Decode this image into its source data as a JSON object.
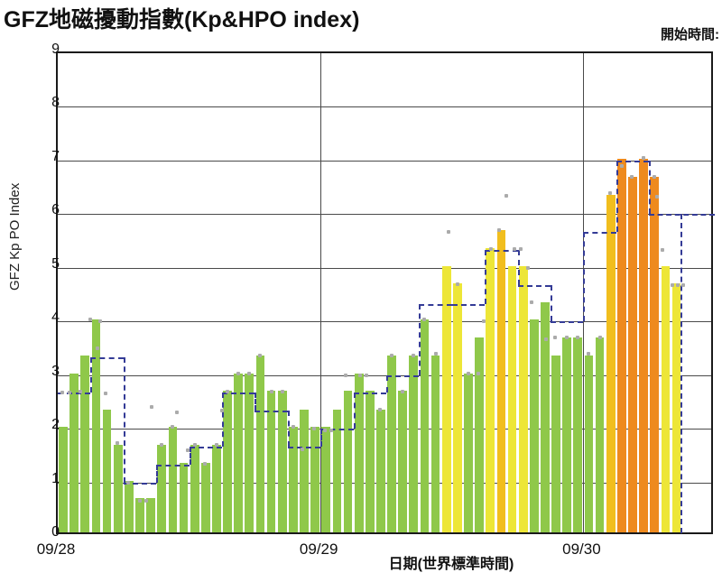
{
  "header": {
    "title": "GFZ地磁擾動指數(Kp&HPO index)",
    "start_time_label": "開始時間:"
  },
  "y_axis": {
    "label": "GFZ Kp  PO Index",
    "ticks": [
      "0",
      "1",
      "2",
      "3",
      "4",
      "5",
      "6",
      "7",
      "8",
      "9"
    ]
  },
  "x_axis": {
    "title": "日期(世界標準時間)",
    "day_labels": [
      {
        "label": "09/28",
        "hour": 0
      },
      {
        "label": "09/29",
        "hour": 24
      },
      {
        "label": "09/30",
        "hour": 48
      }
    ]
  },
  "chart_data": {
    "type": "bar",
    "title": "GFZ地磁擾動指數(Kp&HPO index)",
    "x_unit": "hours UTC from 09/28 00:00",
    "hours_span": 60,
    "ylim": [
      0,
      9
    ],
    "grid": true,
    "series": [
      {
        "name": "HPO hourly index (colored bars)",
        "type": "bar",
        "values": [
          2.0,
          3.0,
          3.33,
          4.0,
          2.33,
          1.67,
          1.0,
          0.67,
          0.67,
          1.67,
          2.0,
          1.33,
          1.67,
          1.33,
          1.67,
          2.67,
          3.0,
          3.0,
          3.33,
          2.67,
          2.67,
          2.0,
          2.33,
          2.0,
          2.0,
          2.33,
          2.67,
          3.0,
          2.67,
          2.33,
          3.33,
          2.67,
          3.33,
          4.0,
          3.33,
          5.0,
          4.67,
          3.0,
          3.67,
          5.33,
          5.67,
          5.0,
          5.0,
          4.0,
          4.33,
          3.33,
          3.67,
          3.67,
          3.33,
          3.67,
          6.33,
          7.0,
          6.67,
          7.0,
          6.67,
          5.0,
          4.67
        ]
      },
      {
        "name": "Kp 3-hour index (dashed navy step line)",
        "type": "step",
        "blocks": [
          {
            "start": 0,
            "end": 3,
            "v": 2.67
          },
          {
            "start": 3,
            "end": 6,
            "v": 3.33
          },
          {
            "start": 6,
            "end": 9,
            "v": 1.0
          },
          {
            "start": 9,
            "end": 12,
            "v": 1.33
          },
          {
            "start": 12,
            "end": 15,
            "v": 1.67
          },
          {
            "start": 15,
            "end": 18,
            "v": 2.67
          },
          {
            "start": 18,
            "end": 21,
            "v": 2.33
          },
          {
            "start": 21,
            "end": 24,
            "v": 1.67
          },
          {
            "start": 24,
            "end": 27,
            "v": 2.0
          },
          {
            "start": 27,
            "end": 30,
            "v": 2.67
          },
          {
            "start": 30,
            "end": 33,
            "v": 3.0
          },
          {
            "start": 33,
            "end": 36,
            "v": 4.33
          },
          {
            "start": 36,
            "end": 39,
            "v": 4.33
          },
          {
            "start": 39,
            "end": 42,
            "v": 5.33
          },
          {
            "start": 42,
            "end": 45,
            "v": 4.67
          },
          {
            "start": 45,
            "end": 48,
            "v": 4.0
          },
          {
            "start": 48,
            "end": 51,
            "v": 5.67
          },
          {
            "start": 51,
            "end": 54,
            "v": 7.0
          },
          {
            "start": 54,
            "end": 60,
            "v": 6.0
          }
        ],
        "end_of_data_marker": {
          "hour": 56.85,
          "from": 6.0,
          "to": 0.05
        }
      },
      {
        "name": "Hp30 half-hour index (gray dots)",
        "type": "scatter",
        "points": [
          [
            0.4,
            2.67
          ],
          [
            1.1,
            2.67
          ],
          [
            2.1,
            2.7
          ],
          [
            3.0,
            4.03
          ],
          [
            3.6,
            3.5
          ],
          [
            3.9,
            4.0
          ],
          [
            4.4,
            2.65
          ],
          [
            5.4,
            1.73
          ],
          [
            6.4,
            1.0
          ],
          [
            7.5,
            0.65
          ],
          [
            8.1,
            0.65
          ],
          [
            8.6,
            2.4
          ],
          [
            9.5,
            1.7
          ],
          [
            10.5,
            2.03
          ],
          [
            10.9,
            2.3
          ],
          [
            11.9,
            1.6
          ],
          [
            12.5,
            1.7
          ],
          [
            13.4,
            1.35
          ],
          [
            14.5,
            1.7
          ],
          [
            15.0,
            2.33
          ],
          [
            15.5,
            2.7
          ],
          [
            16.5,
            3.03
          ],
          [
            17.5,
            3.03
          ],
          [
            18.5,
            3.37
          ],
          [
            19.5,
            2.7
          ],
          [
            20.5,
            2.7
          ],
          [
            21.5,
            2.03
          ],
          [
            22.3,
            1.62
          ],
          [
            23.4,
            2.0
          ],
          [
            24.4,
            1.97
          ],
          [
            25.0,
            1.97
          ],
          [
            26.3,
            3.0
          ],
          [
            27.6,
            3.0
          ],
          [
            28.2,
            3.0
          ],
          [
            29.4,
            2.35
          ],
          [
            30.5,
            3.37
          ],
          [
            31.5,
            2.7
          ],
          [
            32.5,
            3.37
          ],
          [
            33.5,
            4.03
          ],
          [
            34.5,
            3.4
          ],
          [
            35.7,
            5.67
          ],
          [
            36.5,
            4.7
          ],
          [
            37.5,
            3.03
          ],
          [
            38.4,
            3.03
          ],
          [
            38.9,
            4.0
          ],
          [
            39.6,
            5.35
          ],
          [
            40.3,
            5.7
          ],
          [
            41.0,
            6.35
          ],
          [
            41.7,
            5.35
          ],
          [
            42.3,
            5.35
          ],
          [
            42.9,
            5.0
          ],
          [
            43.3,
            4.35
          ],
          [
            44.6,
            3.67
          ],
          [
            45.4,
            3.7
          ],
          [
            46.5,
            3.7
          ],
          [
            47.5,
            3.7
          ],
          [
            48.5,
            3.4
          ],
          [
            49.5,
            3.7
          ],
          [
            50.4,
            6.4
          ],
          [
            51.5,
            6.9
          ],
          [
            52.4,
            6.7
          ],
          [
            53.5,
            7.05
          ],
          [
            54.5,
            6.7
          ],
          [
            54.7,
            6.33
          ],
          [
            55.2,
            5.33
          ],
          [
            56.1,
            4.67
          ],
          [
            56.6,
            4.67
          ],
          [
            57.1,
            4.67
          ]
        ]
      }
    ],
    "bar_color_scale": {
      "green": "#8FC84A",
      "yellow": "#EDE637",
      "gold": "#F1BE1E",
      "orange": "#EE8A1E",
      "thresholds": [
        {
          "min": 6.67,
          "color": "orange"
        },
        {
          "min": 5.67,
          "color": "gold"
        },
        {
          "min": 4.67,
          "color": "yellow"
        },
        {
          "min": 0,
          "color": "green"
        }
      ]
    },
    "kp_line_color": "#343B96",
    "dot_color": "#ABABAB"
  }
}
